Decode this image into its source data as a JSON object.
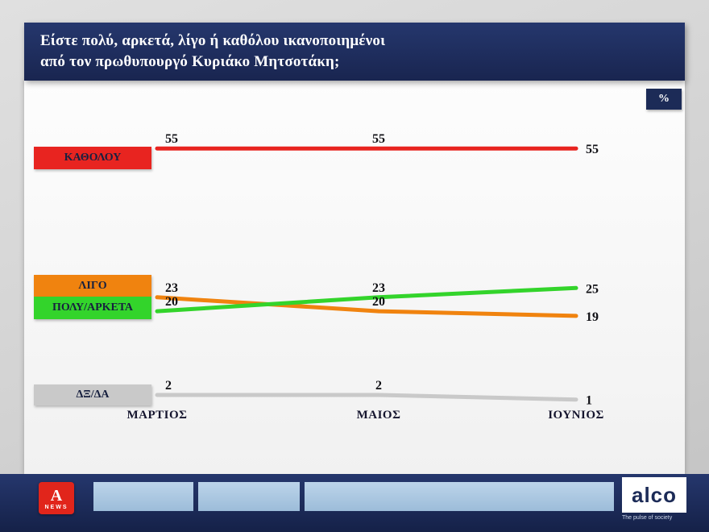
{
  "header": {
    "question_line1": "Είστε πολύ, αρκετά, λίγο ή καθόλου ικανοποιημένοι",
    "question_line2": "από τον πρωθυπουργό Κυριάκο Μητσοτάκη;",
    "unit_badge": "%"
  },
  "chart_data": {
    "type": "line",
    "title": "Είστε πολύ, αρκετά, λίγο ή καθόλου ικανοποιημένοι από τον πρωθυπουργό Κυριάκο Μητσοτάκη;",
    "unit": "%",
    "categories": [
      "ΜΑΡΤΙΟΣ",
      "ΜΑΙΟΣ",
      "ΙΟΥΝΙΟΣ"
    ],
    "series": [
      {
        "name": "ΚΑΘΟΛΟΥ",
        "color": "#e82420",
        "values": [
          55,
          55,
          55
        ]
      },
      {
        "name": "ΛΙΓΟ",
        "color": "#f0830f",
        "values": [
          23,
          20,
          19
        ]
      },
      {
        "name": "ΠΟΛΥ/ΑΡΚΕΤΑ",
        "color": "#33d42b",
        "values": [
          20,
          23,
          25
        ]
      },
      {
        "name": "ΔΞ/ΔΑ",
        "color": "#c9c9c9",
        "values": [
          2,
          2,
          1
        ]
      }
    ],
    "ylim": [
      0,
      62
    ],
    "grid": false,
    "legend_position": "left",
    "value_labels_shown": true
  },
  "footer": {
    "channel_letter": "A",
    "channel_label": "NEWS",
    "agency_logo": "alco",
    "agency_tagline": "The pulse of society"
  }
}
